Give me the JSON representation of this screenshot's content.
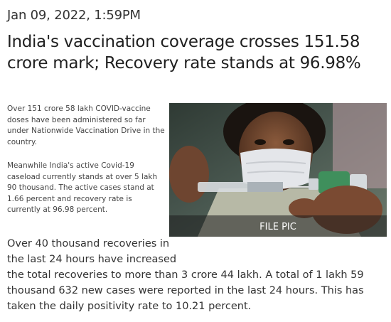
{
  "article": {
    "date": "Jan 09, 2022, 1:59PM",
    "headline": "India's vaccination coverage crosses 151.58 crore mark; Recovery rate stands at 96.98%",
    "paragraph1": "Over 151 crore 58 lakh COVID-vaccine doses have been administered so far under Nationwide Vaccination Drive in the country.",
    "paragraph2": "Meanwhile India's active Covid-19 caseload currently stands at over 5 lakh 90 thousand. The active cases stand at 1.66 percent and recovery rate is currently at 96.98 percent.",
    "paragraph3_line1": "Over 40 thousand recoveries in",
    "paragraph3_line2": "the last 24 hours have increased",
    "paragraph3_rest": "the total recoveries to more than  3 crore 44 lakh. A total of 1 lakh 59 thousand 632 new cases were reported in the last 24 hours. This has taken the daily positivity rate to 10.21 percent.",
    "image_caption": "FILE PIC"
  }
}
